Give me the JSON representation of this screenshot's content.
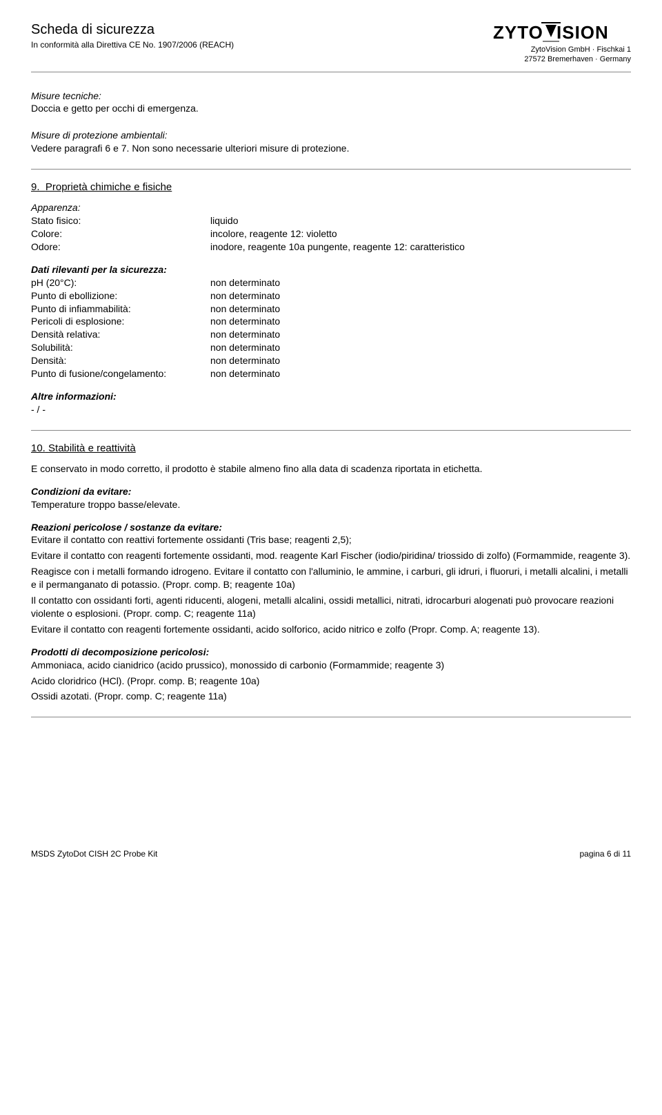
{
  "header": {
    "title": "Scheda di sicurezza",
    "subtitle": "In conformità alla Direttiva CE No. 1907/2006 (REACH)",
    "company_line1": "ZytoVision GmbH · Fischkai 1",
    "company_line2": "27572 Bremerhaven · Germany"
  },
  "misure_tecniche": {
    "heading": "Misure tecniche:",
    "body": "Doccia e getto per occhi di emergenza."
  },
  "misure_ambientali": {
    "heading": "Misure di protezione ambientali:",
    "body": "Vedere paragrafi 6 e 7. Non sono necessarie ulteriori misure di protezione."
  },
  "sec9": {
    "num": "9.",
    "title": "Proprietà chimiche e fisiche",
    "apparenza_h": "Apparenza:",
    "rows_a": [
      {
        "k": "Stato fisico:",
        "v": "liquido"
      },
      {
        "k": "Colore:",
        "v": "incolore, reagente 12: violetto"
      },
      {
        "k": "Odore:",
        "v": "inodore, reagente 10a pungente, reagente 12: caratteristico"
      }
    ],
    "dati_h": "Dati rilevanti per la sicurezza:",
    "rows_b": [
      {
        "k": "pH (20°C):",
        "v": "non determinato"
      },
      {
        "k": "Punto di ebollizione:",
        "v": "non determinato"
      },
      {
        "k": "Punto di infiammabilità:",
        "v": "non determinato"
      },
      {
        "k": "Pericoli di esplosione:",
        "v": "non determinato"
      },
      {
        "k": "Densità relativa:",
        "v": "non determinato"
      },
      {
        "k": "Solubilità:",
        "v": "non determinato"
      },
      {
        "k": "Densità:",
        "v": "non determinato"
      },
      {
        "k": "Punto di fusione/congelamento:",
        "v": "non determinato"
      }
    ],
    "altre_h": "Altre informazioni:",
    "altre_v": "- / -"
  },
  "sec10": {
    "num": "10.",
    "title": "Stabilità e reattività",
    "intro": "E conservato in modo corretto, il prodotto è stabile almeno fino alla data di scadenza riportata in etichetta.",
    "cond_h": "Condizioni da evitare:",
    "cond_v": "Temperature troppo basse/elevate.",
    "reaz_h": "Reazioni pericolose / sostanze da evitare:",
    "reaz_lines": [
      "Evitare il contatto con reattivi fortemente ossidanti (Tris base; reagenti 2,5);",
      "Evitare il contatto con reagenti fortemente ossidanti, mod. reagente Karl Fischer (iodio/piridina/ triossido di zolfo) (Formammide, reagente 3).",
      "Reagisce con i metalli formando idrogeno. Evitare il contatto con l'alluminio, le ammine, i carburi, gli idruri, i fluoruri, i metalli alcalini, i metalli e il permanganato di potassio. (Propr. comp. B; reagente 10a)",
      "Il contatto con ossidanti forti, agenti riducenti, alogeni, metalli alcalini, ossidi metallici, nitrati, idrocarburi alogenati può provocare reazioni violente o esplosioni. (Propr. comp. C; reagente 11a)",
      "Evitare il contatto con reagenti fortemente ossidanti, acido solforico, acido nitrico e zolfo (Propr. Comp. A; reagente 13)."
    ],
    "prod_h": "Prodotti di decomposizione pericolosi:",
    "prod_lines": [
      "Ammoniaca, acido cianidrico (acido prussico), monossido di carbonio (Formammide; reagente 3)",
      "Acido cloridrico (HCl). (Propr. comp. B; reagente 10a)",
      "Ossidi azotati. (Propr. comp. C; reagente 11a)"
    ]
  },
  "footer": {
    "left": "MSDS ZytoDot CISH 2C Probe Kit",
    "right": "pagina 6 di 11"
  },
  "colors": {
    "rule": "#888888",
    "text": "#000000",
    "bg": "#ffffff"
  }
}
